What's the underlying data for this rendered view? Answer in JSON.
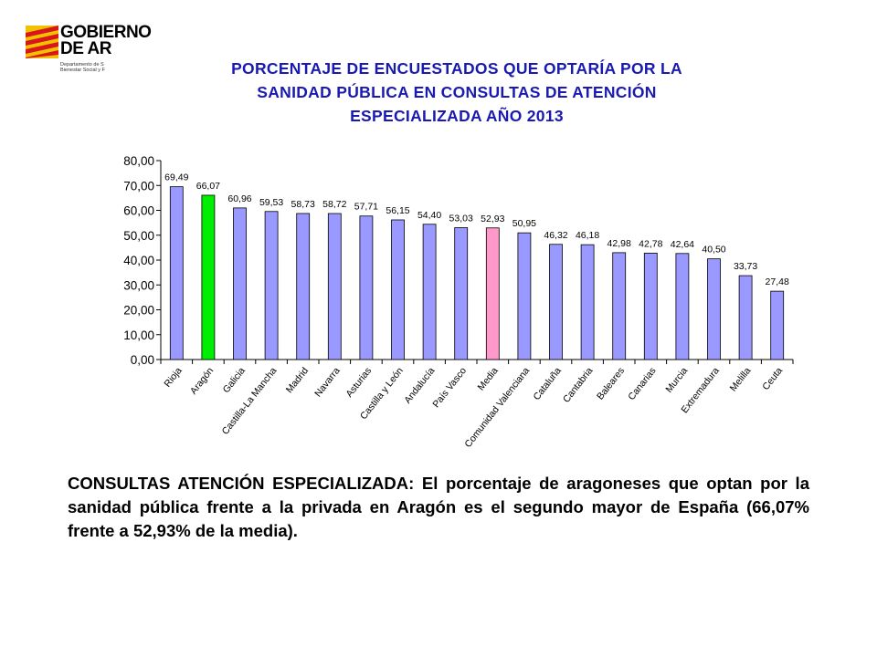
{
  "logo": {
    "name_lines": [
      "GOBIERNO",
      "DE AR"
    ],
    "department_lines": [
      "Departamento de S",
      "Bienestar Social y F"
    ]
  },
  "title_lines": [
    "PORCENTAJE DE ENCUESTADOS QUE OPTARÍA POR LA",
    "SANIDAD PÚBLICA EN CONSULTAS DE ATENCIÓN",
    "ESPECIALIZADA AÑO 2013"
  ],
  "chart_data": {
    "type": "bar",
    "categories": [
      "Rioja",
      "Aragón",
      "Galicia",
      "Castilla-La Mancha",
      "Madrid",
      "Navarra",
      "Asturias",
      "Castilla y León",
      "Andalucía",
      "País Vasco",
      "Media",
      "Comunidad Valenciana",
      "Cataluña",
      "Cantabria",
      "Baleares",
      "Canarias",
      "Murcia",
      "Extremadura",
      "Melilla",
      "Ceuta"
    ],
    "values": [
      69.49,
      66.07,
      60.96,
      59.53,
      58.73,
      58.72,
      57.71,
      56.15,
      54.4,
      53.03,
      52.93,
      50.95,
      46.32,
      46.18,
      42.98,
      42.78,
      42.64,
      40.5,
      33.73,
      27.48
    ],
    "value_labels": [
      "69,49",
      "66,07",
      "60,96",
      "59,53",
      "58,73",
      "58,72",
      "57,71",
      "56,15",
      "54,40",
      "53,03",
      "52,93",
      "50,95",
      "46,32",
      "46,18",
      "42,98",
      "42,78",
      "42,64",
      "40,50",
      "33,73",
      "27,48"
    ],
    "y_ticks": [
      0,
      10,
      20,
      30,
      40,
      50,
      60,
      70,
      80
    ],
    "y_tick_labels": [
      "0,00",
      "10,00",
      "20,00",
      "30,00",
      "40,00",
      "50,00",
      "60,00",
      "70,00",
      "80,00"
    ],
    "ylim": [
      0,
      80
    ],
    "grid": false,
    "colors": {
      "default": "#9999ff",
      "highlight": "#00ee00",
      "average": "#ff99cc",
      "border": "#000000"
    },
    "highlight_index": 1,
    "average_index": 10
  },
  "description": "CONSULTAS ATENCIÓN ESPECIALIZADA: El porcentaje de aragoneses que optan por la sanidad pública frente a la privada en Aragón es el segundo mayor de España (66,07% frente a 52,93% de la media)."
}
